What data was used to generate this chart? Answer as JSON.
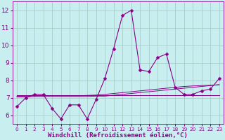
{
  "x": [
    0,
    1,
    2,
    3,
    4,
    5,
    6,
    7,
    8,
    9,
    10,
    11,
    12,
    13,
    14,
    15,
    16,
    17,
    18,
    19,
    20,
    21,
    22,
    23
  ],
  "y_main": [
    6.5,
    7.0,
    7.2,
    7.2,
    6.4,
    5.8,
    6.6,
    6.6,
    5.8,
    6.9,
    8.1,
    9.8,
    11.7,
    12.0,
    8.6,
    8.5,
    9.3,
    9.5,
    7.6,
    7.2,
    7.2,
    7.4,
    7.5,
    8.1
  ],
  "y_trend1": [
    7.05,
    7.05,
    7.08,
    7.08,
    7.08,
    7.08,
    7.08,
    7.08,
    7.08,
    7.1,
    7.1,
    7.15,
    7.2,
    7.25,
    7.3,
    7.35,
    7.4,
    7.45,
    7.5,
    7.55,
    7.6,
    7.65,
    7.7,
    7.75
  ],
  "y_trend2": [
    7.1,
    7.1,
    7.12,
    7.12,
    7.12,
    7.12,
    7.12,
    7.12,
    7.14,
    7.16,
    7.2,
    7.25,
    7.3,
    7.35,
    7.4,
    7.45,
    7.5,
    7.55,
    7.6,
    7.65,
    7.68,
    7.7,
    7.72,
    7.75
  ],
  "y_trend3": [
    7.15,
    7.15,
    7.15,
    7.15,
    7.15,
    7.15,
    7.15,
    7.15,
    7.15,
    7.15,
    7.15,
    7.15,
    7.15,
    7.15,
    7.15,
    7.15,
    7.15,
    7.15,
    7.15,
    7.15,
    7.15,
    7.15,
    7.15,
    7.15
  ],
  "line_color": "#880088",
  "bg_color": "#c8eef0",
  "grid_color": "#a0c8c0",
  "ylim": [
    5.5,
    12.5
  ],
  "xlim": [
    -0.5,
    23.5
  ],
  "yticks": [
    6,
    7,
    8,
    9,
    10,
    11,
    12
  ],
  "xticks": [
    0,
    1,
    2,
    3,
    4,
    5,
    6,
    7,
    8,
    9,
    10,
    11,
    12,
    13,
    14,
    15,
    16,
    17,
    18,
    19,
    20,
    21,
    22,
    23
  ],
  "xlabel": "Windchill (Refroidissement éolien,°C)",
  "xlabel_fontsize": 6.5,
  "ytick_fontsize": 6.5,
  "xtick_fontsize": 5.2,
  "marker_size": 2.5,
  "linewidth": 0.8
}
